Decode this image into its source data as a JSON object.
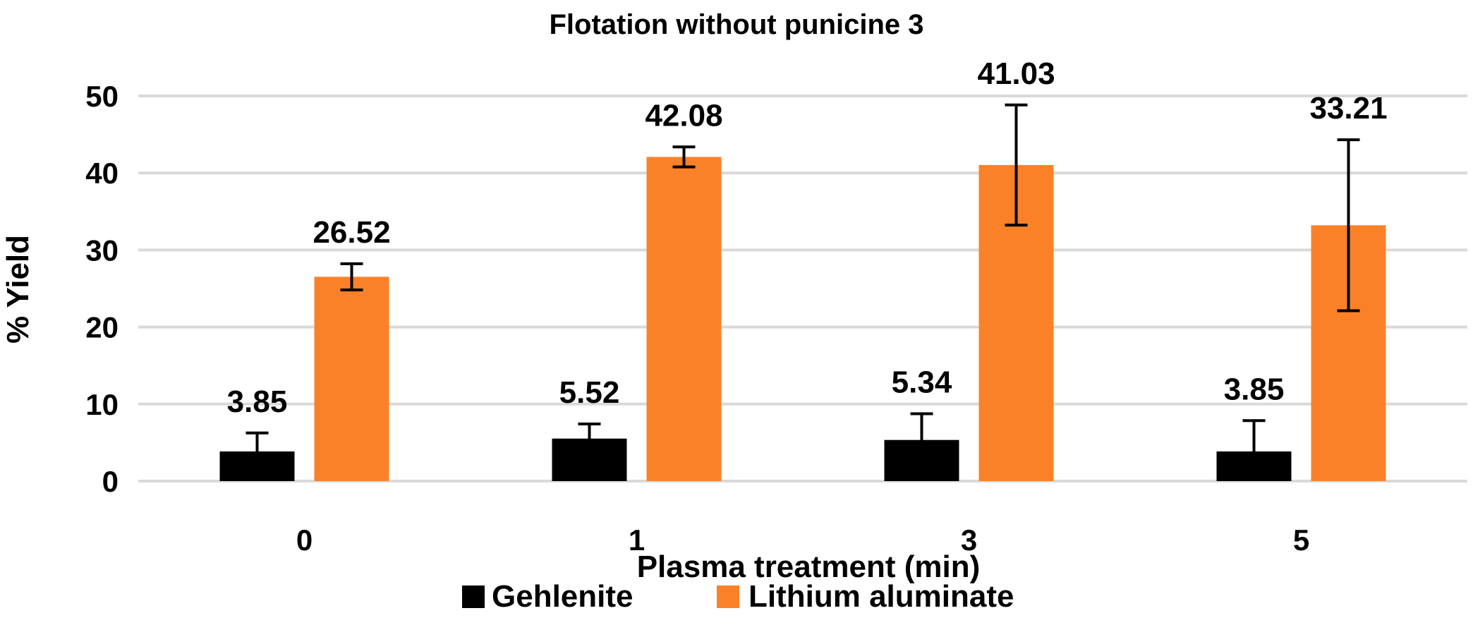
{
  "chart_data": {
    "type": "bar",
    "title": "Flotation without punicine 3",
    "xlabel": "Plasma treatment (min)",
    "ylabel": "% Yield",
    "categories": [
      "0",
      "1",
      "3",
      "5"
    ],
    "ylim": [
      0,
      50
    ],
    "yticks": [
      0,
      10,
      20,
      30,
      40,
      50
    ],
    "grid": true,
    "legend_position": "bottom",
    "series": [
      {
        "name": "Gehlenite",
        "color": "#000000",
        "values": [
          3.85,
          5.52,
          5.34,
          3.85
        ],
        "labels": [
          "3.85",
          "5.52",
          "5.34",
          "3.85"
        ],
        "error": [
          2.4,
          1.9,
          3.4,
          4.0
        ]
      },
      {
        "name": "Lithium aluminate",
        "color": "#fb8129",
        "values": [
          26.52,
          42.08,
          41.03,
          33.21
        ],
        "labels": [
          "26.52",
          "42.08",
          "41.03",
          "33.21"
        ],
        "error": [
          1.7,
          1.3,
          7.8,
          11.1
        ]
      }
    ]
  }
}
